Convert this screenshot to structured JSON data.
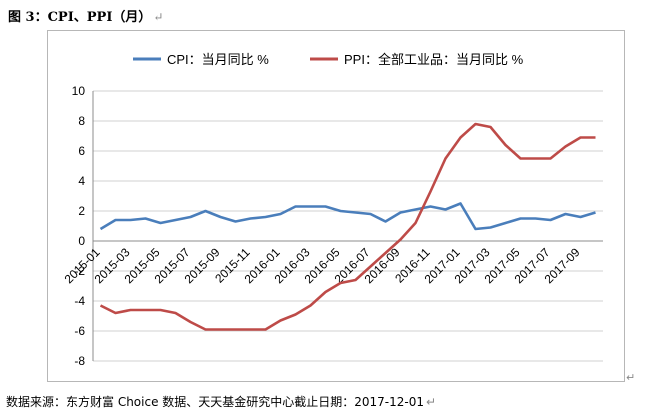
{
  "figure_title": "图 3：CPI、PPI（月）",
  "edit_mark": "↵",
  "source_note": "数据来源：东方财富 Choice 数据、天天基金研究中心截止日期：2017-12-01",
  "chart_data": {
    "type": "line",
    "title": "",
    "xlabel": "",
    "ylabel": "",
    "ylim": [
      -8,
      10
    ],
    "yticks": [
      -8,
      -6,
      -4,
      -2,
      0,
      2,
      4,
      6,
      8,
      10
    ],
    "grid": "horizontal",
    "legend_position": "top",
    "x": [
      "2015-01",
      "2015-02",
      "2015-03",
      "2015-04",
      "2015-05",
      "2015-06",
      "2015-07",
      "2015-08",
      "2015-09",
      "2015-10",
      "2015-11",
      "2015-12",
      "2016-01",
      "2016-02",
      "2016-03",
      "2016-04",
      "2016-05",
      "2016-06",
      "2016-07",
      "2016-08",
      "2016-09",
      "2016-10",
      "2016-11",
      "2016-12",
      "2017-01",
      "2017-02",
      "2017-03",
      "2017-04",
      "2017-05",
      "2017-06",
      "2017-07",
      "2017-08",
      "2017-09",
      "2017-10"
    ],
    "xtick_labels": [
      "2015-01",
      "2015-03",
      "2015-05",
      "2015-07",
      "2015-09",
      "2015-11",
      "2016-01",
      "2016-03",
      "2016-05",
      "2016-07",
      "2016-09",
      "2016-11",
      "2017-01",
      "2017-03",
      "2017-05",
      "2017-07",
      "2017-09"
    ],
    "series": [
      {
        "name": "CPI：当月同比 %",
        "color": "#4a7ebb",
        "values": [
          0.8,
          1.4,
          1.4,
          1.5,
          1.2,
          1.4,
          1.6,
          2.0,
          1.6,
          1.3,
          1.5,
          1.6,
          1.8,
          2.3,
          2.3,
          2.3,
          2.0,
          1.9,
          1.8,
          1.3,
          1.9,
          2.1,
          2.3,
          2.1,
          2.5,
          0.8,
          0.9,
          1.2,
          1.5,
          1.5,
          1.4,
          1.8,
          1.6,
          1.9
        ]
      },
      {
        "name": "PPI：全部工业品：当月同比 %",
        "color": "#be4b48",
        "values": [
          -4.3,
          -4.8,
          -4.6,
          -4.6,
          -4.6,
          -4.8,
          -5.4,
          -5.9,
          -5.9,
          -5.9,
          -5.9,
          -5.9,
          -5.3,
          -4.9,
          -4.3,
          -3.4,
          -2.8,
          -2.6,
          -1.7,
          -0.8,
          0.1,
          1.2,
          3.3,
          5.5,
          6.9,
          7.8,
          7.6,
          6.4,
          5.5,
          5.5,
          5.5,
          6.3,
          6.9,
          6.9
        ]
      }
    ]
  }
}
